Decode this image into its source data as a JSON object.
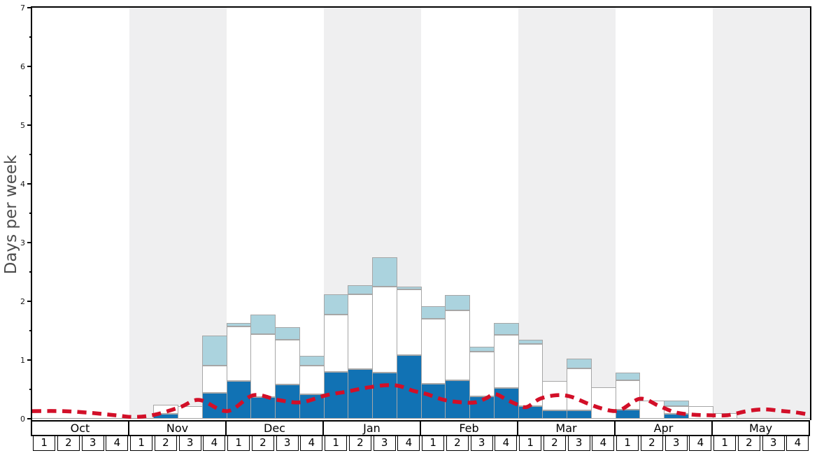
{
  "chart_data": {
    "type": "bar",
    "title": "",
    "ylabel": "Days per week",
    "ylim": [
      0,
      7
    ],
    "yticks": [
      0,
      1,
      2,
      3,
      4,
      5,
      6,
      7
    ],
    "minor_tick_step": 0.5,
    "grid": "off",
    "legend": "none",
    "months": [
      "Oct",
      "Nov",
      "Dec",
      "Jan",
      "Feb",
      "Mar",
      "Apr",
      "May"
    ],
    "shaded_months": [
      "Nov",
      "Jan",
      "Mar",
      "May"
    ],
    "week_labels": [
      "1",
      "2",
      "3",
      "4"
    ],
    "weeks_total": 32,
    "series": [
      {
        "name": "dark-blue-bottom-segment",
        "color": "#1172b4",
        "values": [
          0,
          0,
          0,
          0,
          0,
          0.08,
          0,
          0.44,
          0.64,
          0.37,
          0.58,
          0.42,
          0.8,
          0.85,
          0.79,
          1.08,
          0.59,
          0.65,
          0.38,
          0.52,
          0.22,
          0.14,
          0.14,
          0,
          0.15,
          0,
          0.08,
          0,
          0,
          0,
          0,
          0
        ]
      },
      {
        "name": "white-middle-segment",
        "color": "#ffffff",
        "values": [
          0,
          0,
          0,
          0,
          0,
          0.16,
          0.22,
          0.47,
          0.93,
          1.07,
          0.77,
          0.48,
          0.97,
          1.27,
          1.46,
          1.12,
          1.11,
          1.19,
          0.76,
          0.91,
          1.05,
          0.5,
          0.72,
          0.53,
          0.51,
          0.31,
          0.14,
          0.22,
          0.1,
          0,
          0,
          0
        ]
      },
      {
        "name": "light-blue-top-segment",
        "color": "#abd3de",
        "values": [
          0,
          0,
          0,
          0,
          0,
          0,
          0,
          0.51,
          0.06,
          0.34,
          0.21,
          0.17,
          0.35,
          0.15,
          0.5,
          0.05,
          0.22,
          0.27,
          0.09,
          0.2,
          0.07,
          0,
          0.16,
          0,
          0.13,
          0,
          0.09,
          0,
          0,
          0,
          0,
          0
        ]
      }
    ],
    "line_series": {
      "name": "red-dashed-line",
      "color": "#d20f28",
      "style": "dashed",
      "points": [
        [
          0,
          0.13
        ],
        [
          1.27,
          0.13
        ],
        [
          2.42,
          0.1
        ],
        [
          3.42,
          0.06
        ],
        [
          4.2,
          0.03
        ],
        [
          5.06,
          0.07
        ],
        [
          6.1,
          0.2
        ],
        [
          6.88,
          0.32
        ],
        [
          8.03,
          0.13
        ],
        [
          9.09,
          0.4
        ],
        [
          10.1,
          0.32
        ],
        [
          11.05,
          0.28
        ],
        [
          12.09,
          0.4
        ],
        [
          12.92,
          0.46
        ],
        [
          13.64,
          0.52
        ],
        [
          14.5,
          0.57
        ],
        [
          15.08,
          0.56
        ],
        [
          15.65,
          0.48
        ],
        [
          16.23,
          0.42
        ],
        [
          16.95,
          0.32
        ],
        [
          17.67,
          0.28
        ],
        [
          18.24,
          0.28
        ],
        [
          18.68,
          0.35
        ],
        [
          19.05,
          0.42
        ],
        [
          19.54,
          0.32
        ],
        [
          19.97,
          0.24
        ],
        [
          20.35,
          0.2
        ],
        [
          20.89,
          0.34
        ],
        [
          21.55,
          0.4
        ],
        [
          22.13,
          0.38
        ],
        [
          22.85,
          0.26
        ],
        [
          23.48,
          0.17
        ],
        [
          24.14,
          0.14
        ],
        [
          25.01,
          0.34
        ],
        [
          25.78,
          0.22
        ],
        [
          26.45,
          0.11
        ],
        [
          27.17,
          0.07
        ],
        [
          27.88,
          0.06
        ],
        [
          28.6,
          0.06
        ],
        [
          29.41,
          0.13
        ],
        [
          30.1,
          0.16
        ],
        [
          30.91,
          0.13
        ],
        [
          31.4,
          0.11
        ],
        [
          31.97,
          0.07
        ]
      ]
    },
    "styles": {
      "band_color": "#efeff0",
      "plot_bg": "#ffffff",
      "bar_border": "#a6a6a6",
      "axis_color": "#000000",
      "baseline_color": "#9a9a9a",
      "ylabel_color": "#4d4d4d"
    }
  }
}
